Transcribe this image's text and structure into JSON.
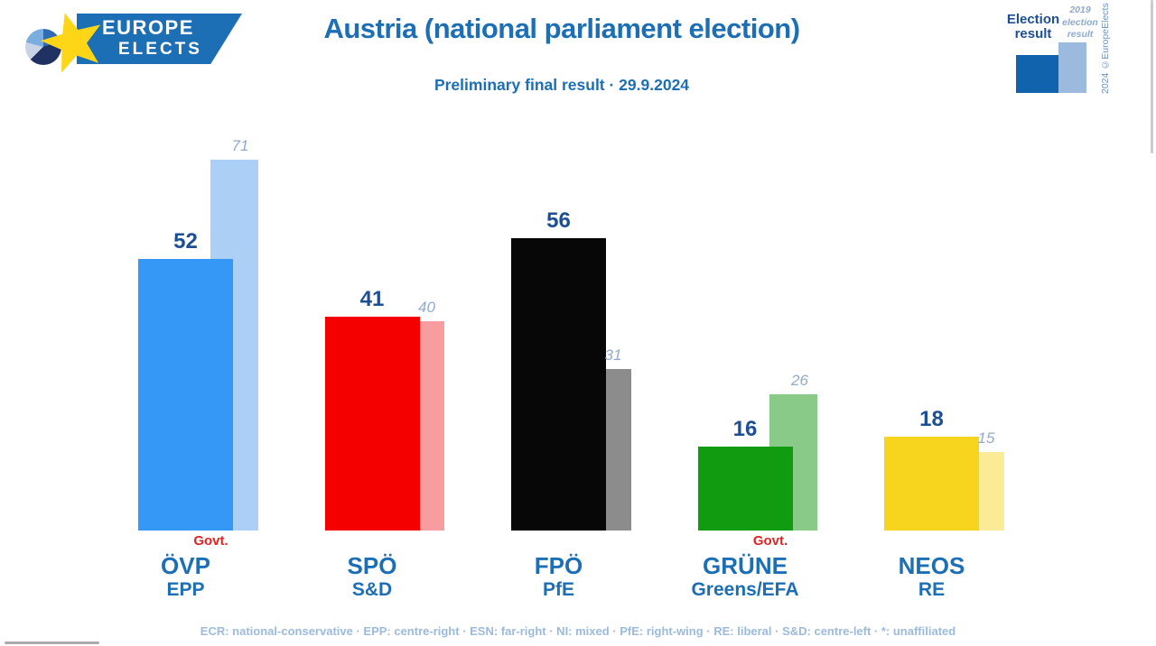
{
  "logo": {
    "line1": "EUROPE",
    "line2": "ELECTS"
  },
  "header": {
    "title": "Austria (national parliament election)",
    "subtitle": "Preliminary final result · 29.9.2024"
  },
  "legend": {
    "current_line1": "Election",
    "current_line2": "result",
    "previous_line1": "2019",
    "previous_line2": "election",
    "previous_line3": "result",
    "watermark": "2024 ©EuropeElects"
  },
  "chart_data": {
    "type": "bar",
    "title": "Austria (national parliament election)",
    "subtitle": "Preliminary final result · 29.9.2024",
    "categories": [
      "ÖVP",
      "SPÖ",
      "FPÖ",
      "GRÜNE",
      "NEOS"
    ],
    "group_labels": [
      "EPP",
      "S&D",
      "PfE",
      "Greens/EFA",
      "RE"
    ],
    "series": [
      {
        "name": "Election result",
        "values": [
          52,
          41,
          56,
          16,
          18
        ]
      },
      {
        "name": "2019 election result",
        "values": [
          71,
          40,
          31,
          26,
          15
        ]
      }
    ],
    "government_parties": [
      "ÖVP",
      "GRÜNE"
    ],
    "ylim": [
      0,
      75
    ],
    "grid": false,
    "legend_position": "top-right"
  },
  "parties": [
    {
      "name": "ÖVP",
      "group": "EPP",
      "value": 52,
      "prev": 71,
      "color": "#3598f7",
      "prev_color": "#accff5",
      "govt": "Govt."
    },
    {
      "name": "SPÖ",
      "group": "S&D",
      "value": 41,
      "prev": 40,
      "color": "#f50000",
      "prev_color": "#f99c9f",
      "govt": null
    },
    {
      "name": "FPÖ",
      "group": "PfE",
      "value": 56,
      "prev": 31,
      "color": "#070707",
      "prev_color": "#8c8c8c",
      "govt": null
    },
    {
      "name": "GRÜNE",
      "group": "Greens/EFA",
      "value": 16,
      "prev": 26,
      "color": "#119b11",
      "prev_color": "#89ca89",
      "govt": "Govt."
    },
    {
      "name": "NEOS",
      "group": "RE",
      "value": 18,
      "prev": 15,
      "color": "#f7d41e",
      "prev_color": "#fceb96",
      "govt": null
    }
  ],
  "footer": {
    "note": "ECR: national-conservative · EPP: centre-right · ESN: far-right · NI: mixed · PfE: right-wing · RE: liberal · S&D: centre-left · *: unaffiliated"
  },
  "colors": {
    "brand_blue": "#1d6fb5",
    "value_navy": "#1c4f94",
    "prev_label_blue": "#92aacd",
    "govt_red": "#e02423",
    "footer_blue": "#9cbbdc",
    "legend_current": "#1263ad",
    "legend_previous": "#9cbade",
    "star_yellow": "#ffd617"
  }
}
